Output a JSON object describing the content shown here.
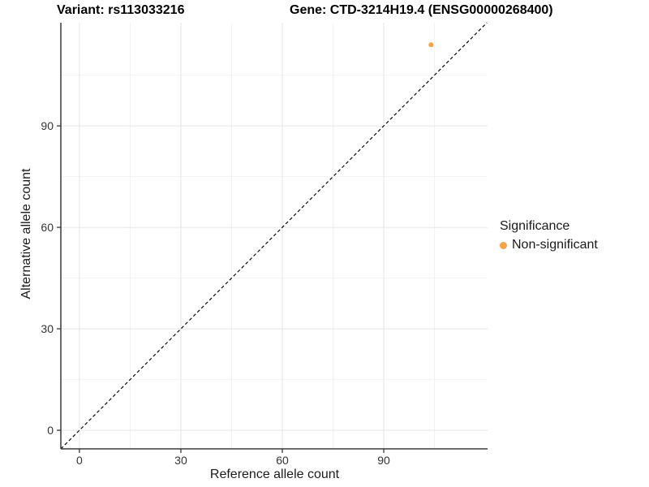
{
  "chart_data": {
    "type": "scatter",
    "title_left": "Variant: rs113033216",
    "title_right": "Gene: CTD-3214H19.4 (ENSG00000268400)",
    "xlabel": "Reference allele count",
    "ylabel": "Alternative allele count",
    "xlim": [
      -5.5,
      120.7
    ],
    "ylim": [
      -5.5,
      120.5
    ],
    "x_ticks": [
      0,
      30,
      60,
      90
    ],
    "y_ticks": [
      0,
      30,
      60,
      90
    ],
    "x_minor_ticks": [
      15,
      45,
      75,
      105
    ],
    "y_minor_ticks": [
      15,
      45,
      75,
      105
    ],
    "grid": "major+minor",
    "identity_line": {
      "style": "dashed",
      "slope": 1,
      "intercept": 0,
      "from": -5.5,
      "to": 120.5
    },
    "legend": {
      "title": "Significance",
      "position": "right-middle"
    },
    "series": [
      {
        "name": "Non-significant",
        "color": "#F9A242",
        "points": [
          {
            "x": 104,
            "y": 114
          }
        ]
      }
    ]
  },
  "colors": {
    "point_accent": "#F9A242",
    "grid_major": "#e4e4e4",
    "grid_minor": "#f2f2f2",
    "axis_line": "#383838",
    "identity_line": "#000000",
    "text": "#1a1a1a"
  }
}
